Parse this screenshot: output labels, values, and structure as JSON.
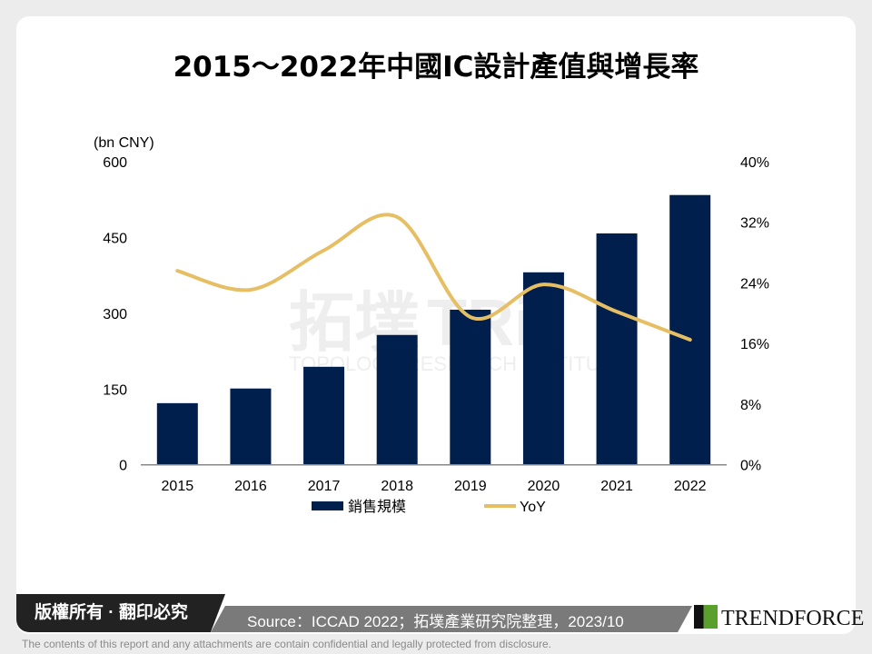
{
  "chart_data": {
    "type": "bar+line",
    "title": "2015～2022年中國IC設計產值與增長率",
    "ylabel": "(bn CNY)",
    "categories": [
      "2015",
      "2016",
      "2017",
      "2018",
      "2019",
      "2020",
      "2021",
      "2022"
    ],
    "ylim": [
      0,
      600
    ],
    "yticks": [
      "0",
      "150",
      "300",
      "450",
      "600"
    ],
    "y2lim": [
      0,
      40
    ],
    "y2ticks": [
      "0%",
      "8%",
      "16%",
      "24%",
      "32%",
      "40%"
    ],
    "series": [
      {
        "name": "銷售規模",
        "type": "bar",
        "axis": "left",
        "color": "#001f4d",
        "values": [
          122,
          151,
          194,
          257,
          307,
          381,
          458,
          534
        ]
      },
      {
        "name": "YoY",
        "type": "line",
        "axis": "right",
        "color": "#e6bf64",
        "values": [
          25.6,
          23.1,
          28.3,
          32.7,
          19.5,
          23.8,
          20.2,
          16.5
        ]
      }
    ],
    "legend": "bottom",
    "grid": false
  },
  "watermark": {
    "cn": "拓墣",
    "abbr": "TRi",
    "en": "TOPOLOGY RESEARCH INSTITUTE"
  },
  "footer": {
    "copyright": "版權所有 · 翻印必究",
    "source": "Source：ICCAD 2022；拓墣產業研究院整理，2023/10",
    "brand": "TRENDFORCE",
    "disclaimer": "The contents of this report and any attachments are contain confidential and legally protected from disclosure."
  }
}
